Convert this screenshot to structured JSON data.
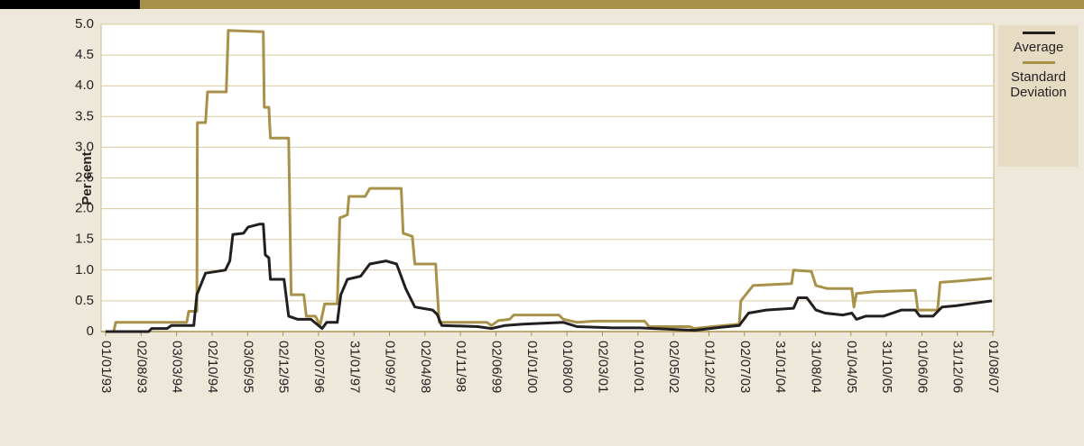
{
  "chart_data": {
    "type": "line",
    "y_label": "Per cent",
    "xlim": [
      0,
      175
    ],
    "xticks": [
      {
        "value": 0,
        "label": "01/01/93"
      },
      {
        "value": 7,
        "label": "02/08/93"
      },
      {
        "value": 14,
        "label": "03/03/94"
      },
      {
        "value": 21,
        "label": "02/10/94"
      },
      {
        "value": 28,
        "label": "03/05/95"
      },
      {
        "value": 35,
        "label": "02/12/95"
      },
      {
        "value": 42,
        "label": "02/07/96"
      },
      {
        "value": 49,
        "label": "31/01/97"
      },
      {
        "value": 56,
        "label": "01/09/97"
      },
      {
        "value": 63,
        "label": "02/04/98"
      },
      {
        "value": 70,
        "label": "01/11/98"
      },
      {
        "value": 77,
        "label": "02/06/99"
      },
      {
        "value": 84,
        "label": "01/01/00"
      },
      {
        "value": 91,
        "label": "01/08/00"
      },
      {
        "value": 98,
        "label": "02/03/01"
      },
      {
        "value": 105,
        "label": "01/10/01"
      },
      {
        "value": 112,
        "label": "02/05/02"
      },
      {
        "value": 119,
        "label": "01/12/02"
      },
      {
        "value": 126,
        "label": "02/07/03"
      },
      {
        "value": 133,
        "label": "31/01/04"
      },
      {
        "value": 140,
        "label": "31/08/04"
      },
      {
        "value": 147,
        "label": "01/04/05"
      },
      {
        "value": 154,
        "label": "31/10/05"
      },
      {
        "value": 161,
        "label": "01/06/06"
      },
      {
        "value": 168,
        "label": "31/12/06"
      },
      {
        "value": 175,
        "label": "01/08/07"
      }
    ],
    "ylim": [
      0,
      5
    ],
    "yticks": [
      0,
      0.5,
      {
        "value": 1,
        "label": "1.0"
      },
      1.5,
      {
        "value": 2,
        "label": "2.0"
      },
      2.5,
      {
        "value": 3,
        "label": "3.0"
      },
      3.5,
      {
        "value": 4,
        "label": "4.0"
      },
      4.5,
      {
        "value": 5,
        "label": "5.0"
      }
    ],
    "grid": true,
    "legend": "right",
    "series": [
      {
        "name": "Average",
        "color": "#231f20",
        "x": [
          0,
          8.5,
          9.1,
          12.1,
          13.0,
          17.4,
          18.0,
          19.7,
          23.6,
          24.5,
          25.1,
          27.2,
          28.1,
          30.4,
          31.1,
          31.5,
          32.2,
          32.5,
          35.2,
          36.1,
          37.9,
          40.5,
          42.7,
          43.6,
          45.7,
          46.4,
          47.7,
          50.3,
          52.1,
          55.3,
          57.4,
          59.2,
          61.0,
          64.5,
          65.4,
          66.3,
          73.4,
          76.1,
          78.8,
          82.3,
          90.3,
          93.0,
          100.1,
          105.4,
          116.1,
          121.4,
          125.0,
          126.8,
          130.3,
          135.7,
          136.6,
          138.3,
          140.1,
          141.9,
          145.4,
          147.2,
          148.1,
          149.9,
          153.4,
          157.0,
          159.7,
          160.6,
          163.2,
          165.0,
          167.7,
          170.3,
          174.8
        ],
        "values": [
          0,
          0,
          0.05,
          0.05,
          0.1,
          0.1,
          0.6,
          0.95,
          1.0,
          1.15,
          1.58,
          1.6,
          1.7,
          1.75,
          1.75,
          1.25,
          1.2,
          0.85,
          0.85,
          0.25,
          0.2,
          0.2,
          0.05,
          0.15,
          0.15,
          0.6,
          0.85,
          0.9,
          1.1,
          1.15,
          1.1,
          0.7,
          0.4,
          0.35,
          0.28,
          0.1,
          0.08,
          0.05,
          0.1,
          0.12,
          0.15,
          0.08,
          0.06,
          0.06,
          0.02,
          0.07,
          0.1,
          0.3,
          0.35,
          0.38,
          0.55,
          0.55,
          0.35,
          0.3,
          0.27,
          0.3,
          0.2,
          0.25,
          0.25,
          0.35,
          0.35,
          0.25,
          0.25,
          0.4,
          0.42,
          0.45,
          0.5
        ]
      },
      {
        "name": "Standard Deviation",
        "color": "#a8924a",
        "x": [
          0,
          1.6,
          2.0,
          16.0,
          16.4,
          18.0,
          18.1,
          19.7,
          20.1,
          23.8,
          24.2,
          31.1,
          31.3,
          32.2,
          32.5,
          36.1,
          36.6,
          39.1,
          39.6,
          41.4,
          42.3,
          43.2,
          45.7,
          46.2,
          47.7,
          48.0,
          51.2,
          52.1,
          58.3,
          58.7,
          60.5,
          61.0,
          65.1,
          65.8,
          75.2,
          76.1,
          77.5,
          79.7,
          80.5,
          89.4,
          90.3,
          93.0,
          96.5,
          106.3,
          107.2,
          115.2,
          116.1,
          119.7,
          125.0,
          125.3,
          127.7,
          135.3,
          135.7,
          139.2,
          140.1,
          142.4,
          147.2,
          147.6,
          148.1,
          151.7,
          159.7,
          160.2,
          164.1,
          164.6,
          167.7,
          174.8
        ],
        "values": [
          0,
          0,
          0.15,
          0.15,
          0.33,
          0.33,
          3.4,
          3.4,
          3.9,
          3.9,
          4.9,
          4.88,
          3.65,
          3.65,
          3.15,
          3.15,
          0.6,
          0.6,
          0.25,
          0.25,
          0.1,
          0.45,
          0.45,
          1.85,
          1.9,
          2.2,
          2.2,
          2.33,
          2.33,
          1.6,
          1.55,
          1.1,
          1.1,
          0.15,
          0.15,
          0.1,
          0.18,
          0.2,
          0.27,
          0.27,
          0.2,
          0.15,
          0.17,
          0.17,
          0.08,
          0.08,
          0.05,
          0.08,
          0.12,
          0.5,
          0.75,
          0.78,
          1.0,
          0.98,
          0.75,
          0.7,
          0.7,
          0.4,
          0.62,
          0.65,
          0.67,
          0.35,
          0.35,
          0.8,
          0.82,
          0.87
        ]
      }
    ]
  }
}
